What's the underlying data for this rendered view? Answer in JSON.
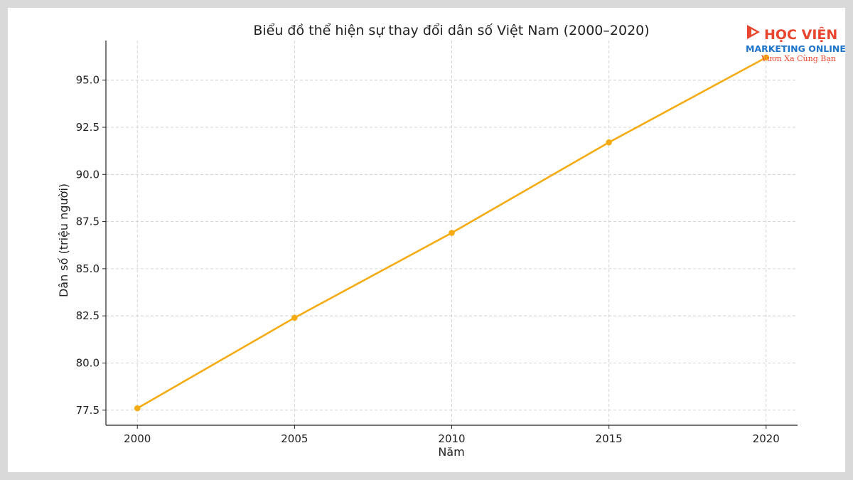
{
  "logo": {
    "line1": "HỌC VIỆN",
    "line2": "MARKETING ONLINE",
    "tagline": "Vươn Xa Cùng Bạn",
    "colors": {
      "red": "#e8452f",
      "blue": "#1e74c9"
    }
  },
  "chart_data": {
    "type": "line",
    "title": "Biểu đồ thể hiện sự thay đổi dân số Việt Nam (2000–2020)",
    "xlabel": "Năm",
    "ylabel": "Dân số (triệu người)",
    "x": [
      2000,
      2005,
      2010,
      2015,
      2020
    ],
    "series": [
      {
        "values": [
          77.6,
          82.4,
          86.9,
          91.7,
          96.2
        ],
        "color": "#f5ac14"
      }
    ],
    "xlim": [
      1999,
      2021
    ],
    "ylim": [
      76.7,
      97.1
    ],
    "xticks": [
      2000,
      2005,
      2010,
      2015,
      2020
    ],
    "yticks": [
      77.5,
      80.0,
      82.5,
      85.0,
      87.5,
      90.0,
      92.5,
      95.0
    ],
    "ytick_labels": [
      "77.5",
      "80.0",
      "82.5",
      "85.0",
      "87.5",
      "90.0",
      "92.5",
      "95.0"
    ],
    "grid": true,
    "legend": false
  }
}
